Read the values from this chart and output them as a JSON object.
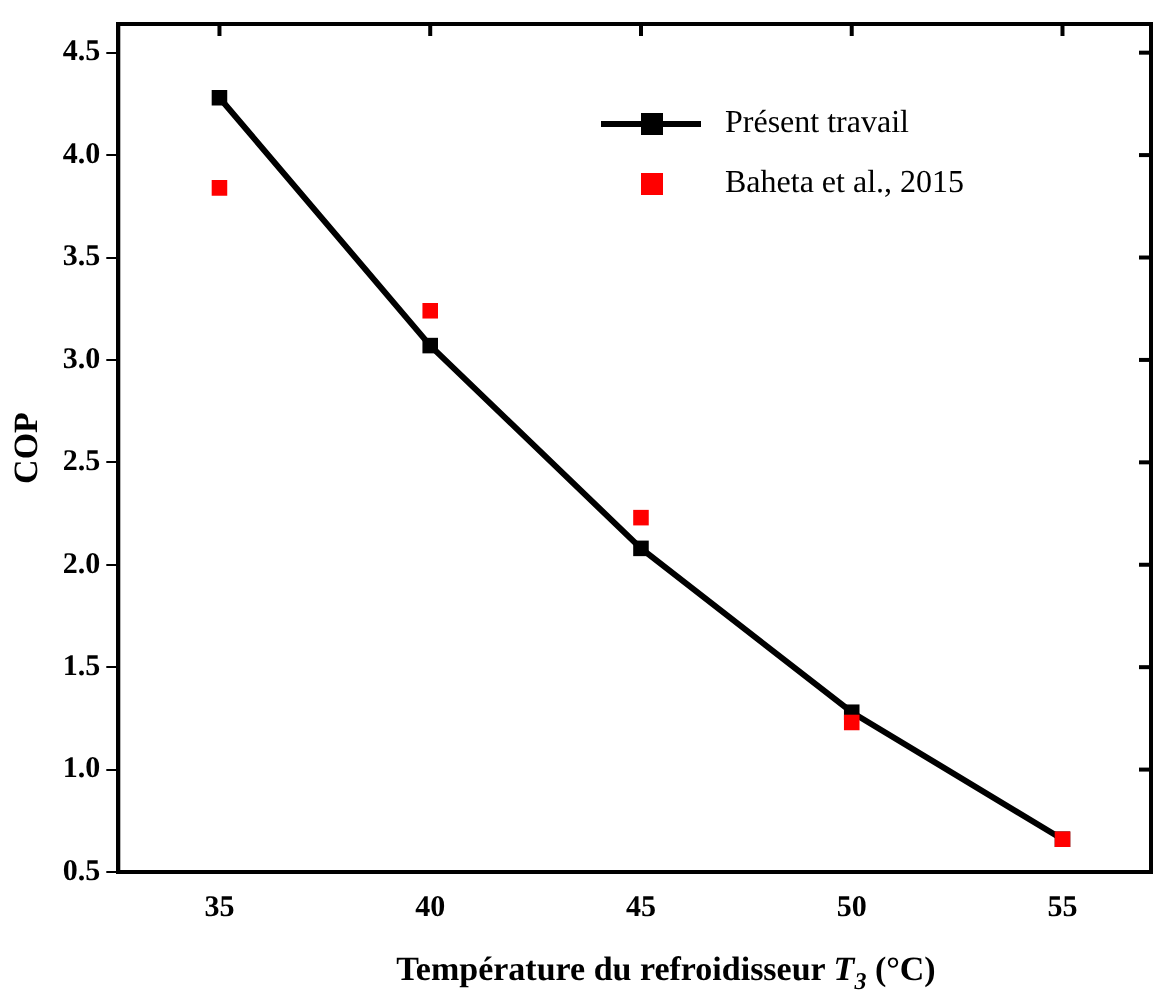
{
  "chart_data": {
    "type": "line",
    "xlabel": "Température du refroidisseur T$_{3}$ (°C)",
    "ylabel": "COP",
    "x": [
      35,
      40,
      45,
      50,
      55
    ],
    "series": [
      {
        "name": "Présent travail",
        "type": "line",
        "color": "#000000",
        "values": [
          4.28,
          3.07,
          2.08,
          1.28,
          0.66
        ],
        "marker": "square",
        "line_style": "solid"
      },
      {
        "name": "Baheta et al., 2015",
        "type": "scatter",
        "color": "#ff0000",
        "values": [
          3.84,
          3.24,
          2.23,
          1.23,
          0.66
        ],
        "marker": "square"
      }
    ],
    "xlim": [
      32.6,
      57.1
    ],
    "xticks": [
      35,
      40,
      45,
      50,
      55
    ],
    "ylim": [
      0.5,
      4.64
    ],
    "yticks": [
      0.5,
      {
        "value": 1,
        "label": "1.0"
      },
      1.5,
      {
        "value": 2,
        "label": "2.0"
      },
      2.5,
      {
        "value": 3,
        "label": "3.0"
      },
      3.5,
      {
        "value": 4,
        "label": "4.0"
      },
      4.5
    ],
    "grid": false,
    "legend": "top right"
  }
}
